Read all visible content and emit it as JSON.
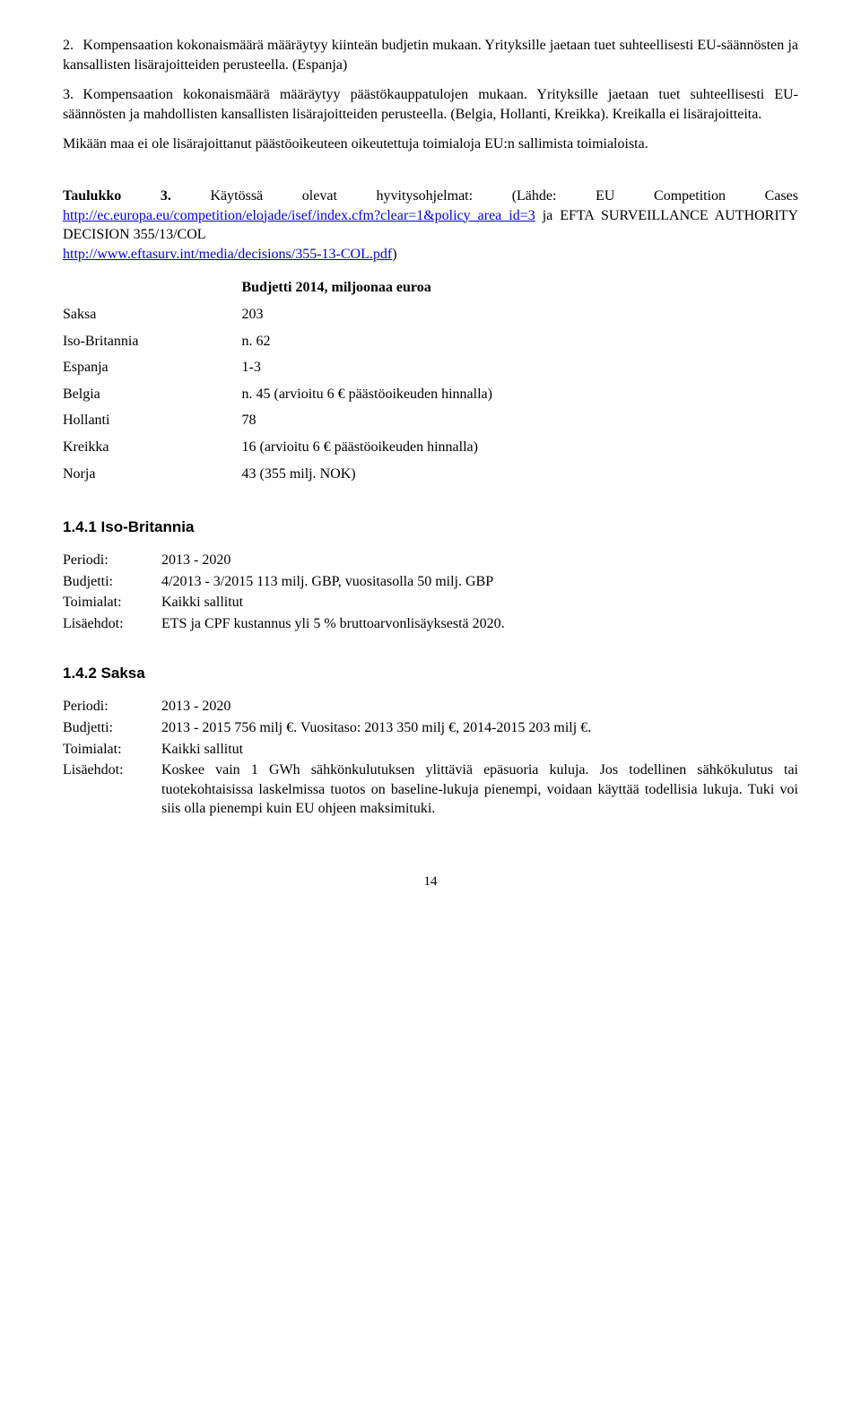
{
  "items": [
    {
      "num": "2.",
      "text": "Kompensaation kokonaismäärä määräytyy kiinteän budjetin mukaan. Yrityksille jaetaan tuet suhteellisesti EU-säännösten ja kansallisten lisärajoitteiden perusteella. (Espanja)"
    },
    {
      "num": "3.",
      "text": "Kompensaation kokonaismäärä määräytyy päästökauppatulojen mukaan. Yrityksille jaetaan tuet suhteellisesti EU-säännösten ja mahdollisten kansallisten lisärajoitteiden perusteella. (Belgia, Hollanti, Kreikka). Kreikalla ei lisärajoitteita."
    }
  ],
  "para_after": "Mikään maa ei ole lisärajoittanut päästöoikeuteen oikeutettuja toimialoja EU:n sallimista toimialoista.",
  "table_heading": {
    "lead": "Taulukko 3.",
    "body1": " Käytössä olevat hyvitysohjelmat: (Lähde: EU Competition Cases ",
    "link1_text": "http://ec.europa.eu/competition/elojade/isef/index.cfm?clear=1&policy_area_id=3",
    "body2": " ja EFTA SURVEILLANCE AUTHORITY DECISION 355/13/COL ",
    "link2_text": "http://www.eftasurv.int/media/decisions/355-13-COL.pdf",
    "body3": ")"
  },
  "table": {
    "header_right": "Budjetti 2014, miljoonaa euroa",
    "rows": [
      {
        "country": "Saksa",
        "value": "203"
      },
      {
        "country": "Iso-Britannia",
        "value": "n. 62"
      },
      {
        "country": "Espanja",
        "value": "1-3"
      },
      {
        "country": "Belgia",
        "value": "n. 45 (arvioitu 6 € päästöoikeuden hinnalla)"
      },
      {
        "country": "Hollanti",
        "value": "78"
      },
      {
        "country": "Kreikka",
        "value": "16 (arvioitu 6 € päästöoikeuden hinnalla)"
      },
      {
        "country": "Norja",
        "value": "43 (355 milj. NOK)"
      }
    ]
  },
  "sections": [
    {
      "heading": "1.4.1 Iso-Britannia",
      "kv": [
        {
          "label": "Periodi:",
          "value": "2013 - 2020"
        },
        {
          "label": "Budjetti:",
          "value": "4/2013 - 3/2015 113 milj. GBP, vuositasolla 50 milj. GBP"
        },
        {
          "label": "Toimialat:",
          "value": "Kaikki sallitut"
        },
        {
          "label": "Lisäehdot:",
          "value": "ETS ja CPF kustannus yli 5 % bruttoarvonlisäyksestä 2020."
        }
      ]
    },
    {
      "heading": "1.4.2 Saksa",
      "kv": [
        {
          "label": "Periodi:",
          "value": "2013 - 2020"
        },
        {
          "label": "Budjetti:",
          "value": "2013 - 2015 756 milj €. Vuositaso: 2013 350 milj €, 2014-2015 203 milj €."
        },
        {
          "label": "Toimialat:",
          "value": "Kaikki sallitut"
        },
        {
          "label": "Lisäehdot:",
          "value": "Koskee vain 1 GWh sähkönkulutuksen ylittäviä epäsuoria kuluja. Jos todellinen sähkökulutus tai tuotekohtaisissa laskelmissa tuotos on baseline-lukuja pienempi, voidaan käyttää todellisia lukuja. Tuki voi siis olla pienempi kuin EU ohjeen maksimituki."
        }
      ]
    }
  ],
  "page_number": "14"
}
